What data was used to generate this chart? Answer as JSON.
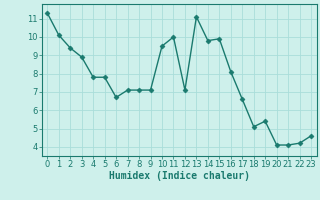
{
  "xlabel": "Humidex (Indice chaleur)",
  "x": [
    0,
    1,
    2,
    3,
    4,
    5,
    6,
    7,
    8,
    9,
    10,
    11,
    12,
    13,
    14,
    15,
    16,
    17,
    18,
    19,
    20,
    21,
    22,
    23
  ],
  "y": [
    11.3,
    10.1,
    9.4,
    8.9,
    7.8,
    7.8,
    6.7,
    7.1,
    7.1,
    7.1,
    9.5,
    10.0,
    7.1,
    11.1,
    9.8,
    9.9,
    8.1,
    6.6,
    5.1,
    5.4,
    4.1,
    4.1,
    4.2,
    4.6
  ],
  "line_color": "#1a7a6e",
  "marker": "D",
  "marker_size": 2.5,
  "bg_color": "#cef0eb",
  "grid_color": "#aaddda",
  "ylim": [
    3.5,
    11.8
  ],
  "yticks": [
    4,
    5,
    6,
    7,
    8,
    9,
    10,
    11
  ],
  "xlim": [
    -0.5,
    23.5
  ],
  "xticks": [
    0,
    1,
    2,
    3,
    4,
    5,
    6,
    7,
    8,
    9,
    10,
    11,
    12,
    13,
    14,
    15,
    16,
    17,
    18,
    19,
    20,
    21,
    22,
    23
  ],
  "xlabel_fontsize": 7,
  "tick_fontsize": 6,
  "line_width": 1.0
}
